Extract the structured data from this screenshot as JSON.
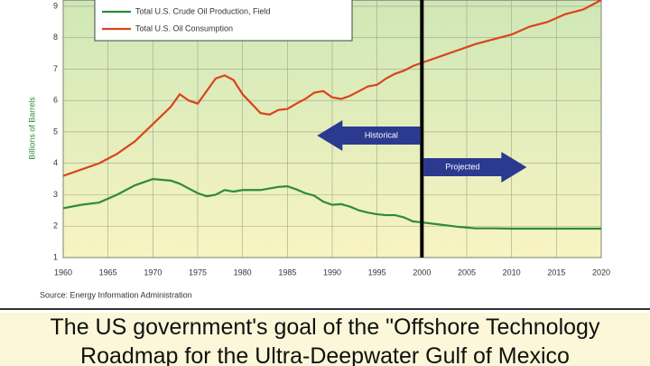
{
  "chart_data": {
    "type": "line",
    "ylabel": "Billions of Barrels",
    "source": "Source: Energy Information Administration",
    "x": [
      1960,
      1962,
      1964,
      1966,
      1968,
      1970,
      1972,
      1973,
      1974,
      1975,
      1976,
      1977,
      1978,
      1979,
      1980,
      1981,
      1982,
      1983,
      1984,
      1985,
      1986,
      1987,
      1988,
      1989,
      1990,
      1991,
      1992,
      1993,
      1994,
      1995,
      1996,
      1997,
      1998,
      1999,
      2000,
      2002,
      2004,
      2006,
      2008,
      2010,
      2012,
      2014,
      2016,
      2018,
      2020
    ],
    "series": [
      {
        "name": "Total U.S. Crude Oil Production, Field",
        "color": "#2e8b3a",
        "values": [
          2.57,
          2.68,
          2.75,
          3.0,
          3.3,
          3.5,
          3.45,
          3.35,
          3.2,
          3.05,
          2.95,
          3.0,
          3.15,
          3.1,
          3.15,
          3.15,
          3.15,
          3.2,
          3.25,
          3.27,
          3.17,
          3.05,
          2.97,
          2.78,
          2.68,
          2.7,
          2.62,
          2.5,
          2.43,
          2.38,
          2.35,
          2.35,
          2.28,
          2.15,
          2.12,
          2.05,
          1.98,
          1.93,
          1.93,
          1.92,
          1.92,
          1.92,
          1.92,
          1.92,
          1.92
        ]
      },
      {
        "name": "Total U.S. Oil Consumption",
        "color": "#d9441c",
        "values": [
          3.6,
          3.8,
          4.0,
          4.3,
          4.7,
          5.25,
          5.8,
          6.2,
          6.0,
          5.9,
          6.3,
          6.7,
          6.8,
          6.65,
          6.2,
          5.9,
          5.6,
          5.55,
          5.7,
          5.73,
          5.9,
          6.05,
          6.25,
          6.3,
          6.1,
          6.05,
          6.15,
          6.3,
          6.45,
          6.5,
          6.7,
          6.85,
          6.95,
          7.1,
          7.2,
          7.4,
          7.6,
          7.8,
          7.95,
          8.1,
          8.35,
          8.5,
          8.75,
          8.9,
          9.2
        ]
      }
    ],
    "xlim": [
      1960,
      2020
    ],
    "xticks": [
      1960,
      1965,
      1970,
      1975,
      1980,
      1985,
      1990,
      1995,
      2000,
      2005,
      2010,
      2015,
      2020
    ],
    "ylim": [
      1,
      9.2
    ],
    "yticks": [
      1,
      2,
      3,
      4,
      5,
      6,
      7,
      8,
      9
    ],
    "grid": true,
    "divider_x": 2000,
    "annotations": [
      {
        "text": "Historical",
        "direction": "left"
      },
      {
        "text": "Projected",
        "direction": "right"
      }
    ]
  },
  "caption": [
    "The US government's goal of the \"Offshore Technology",
    "Roadmap for the Ultra-Deepwater Gulf of Mexico"
  ]
}
